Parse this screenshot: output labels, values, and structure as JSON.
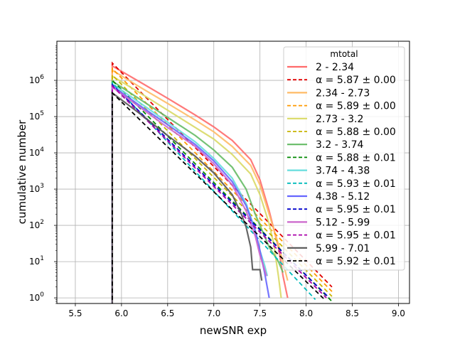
{
  "chart_data": {
    "type": "line",
    "xlabel": "newSNR exp",
    "ylabel": "cumulative number",
    "xlim": [
      5.3,
      9.12
    ],
    "ylim": [
      0.7,
      12000000
    ],
    "yscale": "log",
    "grid": true,
    "legend_position": "top-right",
    "legend_title": "mtotal",
    "x_ticks": [
      "5.5",
      "6.0",
      "6.5",
      "7.0",
      "7.5",
      "8.0",
      "8.5",
      "9.0"
    ],
    "x_tick_values": [
      5.5,
      6.0,
      6.5,
      7.0,
      7.5,
      8.0,
      8.5,
      9.0
    ],
    "y_ticks": [
      "10^0",
      "10^1",
      "10^2",
      "10^3",
      "10^4",
      "10^5",
      "10^6"
    ],
    "y_tick_values": [
      1,
      10,
      100,
      1000,
      10000,
      100000,
      1000000
    ],
    "threshold_x": 5.9,
    "series": [
      {
        "name": "2 - 2.34",
        "color": "#ff6b6b",
        "style": "solid",
        "points": [
          [
            5.9,
            2500000
          ],
          [
            6.2,
            900000
          ],
          [
            6.5,
            320000
          ],
          [
            6.8,
            110000
          ],
          [
            7.0,
            52000
          ],
          [
            7.2,
            22000
          ],
          [
            7.4,
            6500
          ],
          [
            7.5,
            1800
          ],
          [
            7.6,
            250
          ],
          [
            7.7,
            25
          ],
          [
            7.75,
            4
          ],
          [
            7.8,
            1
          ]
        ]
      },
      {
        "name": "α = 5.87 ± 0.00",
        "color": "#e00000",
        "style": "dashed",
        "points": [
          [
            5.9,
            3000000
          ],
          [
            8.28,
            2
          ]
        ]
      },
      {
        "name": "2.34 - 2.73",
        "color": "#ffbb66",
        "style": "solid",
        "points": [
          [
            5.9,
            1900000
          ],
          [
            6.2,
            650000
          ],
          [
            6.5,
            230000
          ],
          [
            6.8,
            80000
          ],
          [
            7.0,
            38000
          ],
          [
            7.2,
            15000
          ],
          [
            7.4,
            4500
          ],
          [
            7.5,
            1300
          ],
          [
            7.6,
            200
          ],
          [
            7.7,
            30
          ],
          [
            7.8,
            3
          ]
        ]
      },
      {
        "name": "α = 5.89 ± 0.00",
        "color": "#ff9900",
        "style": "dashed",
        "points": [
          [
            5.9,
            2100000
          ],
          [
            8.28,
            1.5
          ]
        ]
      },
      {
        "name": "2.73 - 3.2",
        "color": "#d9d966",
        "style": "solid",
        "points": [
          [
            5.9,
            1300000
          ],
          [
            6.2,
            450000
          ],
          [
            6.5,
            150000
          ],
          [
            6.8,
            50000
          ],
          [
            7.0,
            24000
          ],
          [
            7.2,
            9000
          ],
          [
            7.4,
            2600
          ],
          [
            7.5,
            700
          ],
          [
            7.6,
            110
          ],
          [
            7.65,
            30
          ],
          [
            7.7,
            4
          ],
          [
            7.73,
            1
          ]
        ]
      },
      {
        "name": "α = 5.88 ± 0.00",
        "color": "#c8b400",
        "style": "dashed",
        "points": [
          [
            5.9,
            1400000
          ],
          [
            8.28,
            1.1
          ]
        ]
      },
      {
        "name": "3.2 - 3.74",
        "color": "#66bb66",
        "style": "solid",
        "points": [
          [
            5.9,
            950000
          ],
          [
            6.2,
            300000
          ],
          [
            6.5,
            95000
          ],
          [
            6.8,
            30000
          ],
          [
            7.0,
            12000
          ],
          [
            7.2,
            4000
          ],
          [
            7.35,
            1000
          ],
          [
            7.45,
            200
          ],
          [
            7.55,
            50
          ],
          [
            7.6,
            25
          ],
          [
            7.7,
            10
          ],
          [
            7.75,
            5
          ]
        ]
      },
      {
        "name": "α = 5.88 ± 0.01",
        "color": "#008800",
        "style": "dashed",
        "points": [
          [
            5.9,
            1000000
          ],
          [
            8.28,
            0.8
          ]
        ]
      },
      {
        "name": "3.74 - 4.38",
        "color": "#66dddd",
        "style": "solid",
        "points": [
          [
            5.9,
            800000
          ],
          [
            6.2,
            240000
          ],
          [
            6.5,
            70000
          ],
          [
            6.8,
            20000
          ],
          [
            7.0,
            7000
          ],
          [
            7.2,
            2000
          ],
          [
            7.35,
            400
          ],
          [
            7.45,
            70
          ],
          [
            7.5,
            20
          ],
          [
            7.55,
            8
          ],
          [
            7.58,
            4
          ]
        ]
      },
      {
        "name": "α = 5.93 ± 0.01",
        "color": "#00bbbb",
        "style": "dashed",
        "points": [
          [
            5.9,
            850000
          ],
          [
            8.1,
            0.9
          ]
        ]
      },
      {
        "name": "4.38 - 5.12",
        "color": "#6666ff",
        "style": "solid",
        "points": [
          [
            5.9,
            700000
          ],
          [
            6.2,
            200000
          ],
          [
            6.5,
            60000
          ],
          [
            6.8,
            17000
          ],
          [
            7.0,
            6000
          ],
          [
            7.2,
            1600
          ],
          [
            7.35,
            350
          ],
          [
            7.45,
            70
          ],
          [
            7.5,
            20
          ],
          [
            7.55,
            5
          ],
          [
            7.6,
            1
          ]
        ]
      },
      {
        "name": "α = 5.95 ± 0.01",
        "color": "#0000cc",
        "style": "dashed",
        "points": [
          [
            5.9,
            750000
          ],
          [
            8.25,
            1.0
          ]
        ]
      },
      {
        "name": "5.12 - 5.99",
        "color": "#cc66cc",
        "style": "solid",
        "points": [
          [
            5.9,
            650000
          ],
          [
            6.2,
            180000
          ],
          [
            6.5,
            50000
          ],
          [
            6.8,
            15000
          ],
          [
            7.0,
            5000
          ],
          [
            7.2,
            1300
          ],
          [
            7.35,
            250
          ],
          [
            7.45,
            50
          ],
          [
            7.5,
            15
          ],
          [
            7.55,
            6
          ],
          [
            7.57,
            4
          ]
        ]
      },
      {
        "name": "α = 5.95 ± 0.01",
        "color": "#aa00aa",
        "style": "dashed",
        "points": [
          [
            5.9,
            700000
          ],
          [
            8.22,
            1.0
          ]
        ]
      },
      {
        "name": "5.99 - 7.01",
        "color": "#555555",
        "style": "solid",
        "points": [
          [
            5.9,
            450000
          ],
          [
            6.2,
            120000
          ],
          [
            6.5,
            30000
          ],
          [
            6.8,
            8000
          ],
          [
            7.0,
            2800
          ],
          [
            7.2,
            700
          ],
          [
            7.3,
            200
          ],
          [
            7.35,
            90
          ],
          [
            7.4,
            25
          ],
          [
            7.42,
            6
          ],
          [
            7.5,
            6
          ],
          [
            7.52,
            3
          ]
        ]
      },
      {
        "name": "α = 5.92 ± 0.01",
        "color": "#000000",
        "style": "dashed",
        "points": [
          [
            5.9,
            450000
          ],
          [
            8.2,
            0.9
          ]
        ]
      }
    ]
  }
}
